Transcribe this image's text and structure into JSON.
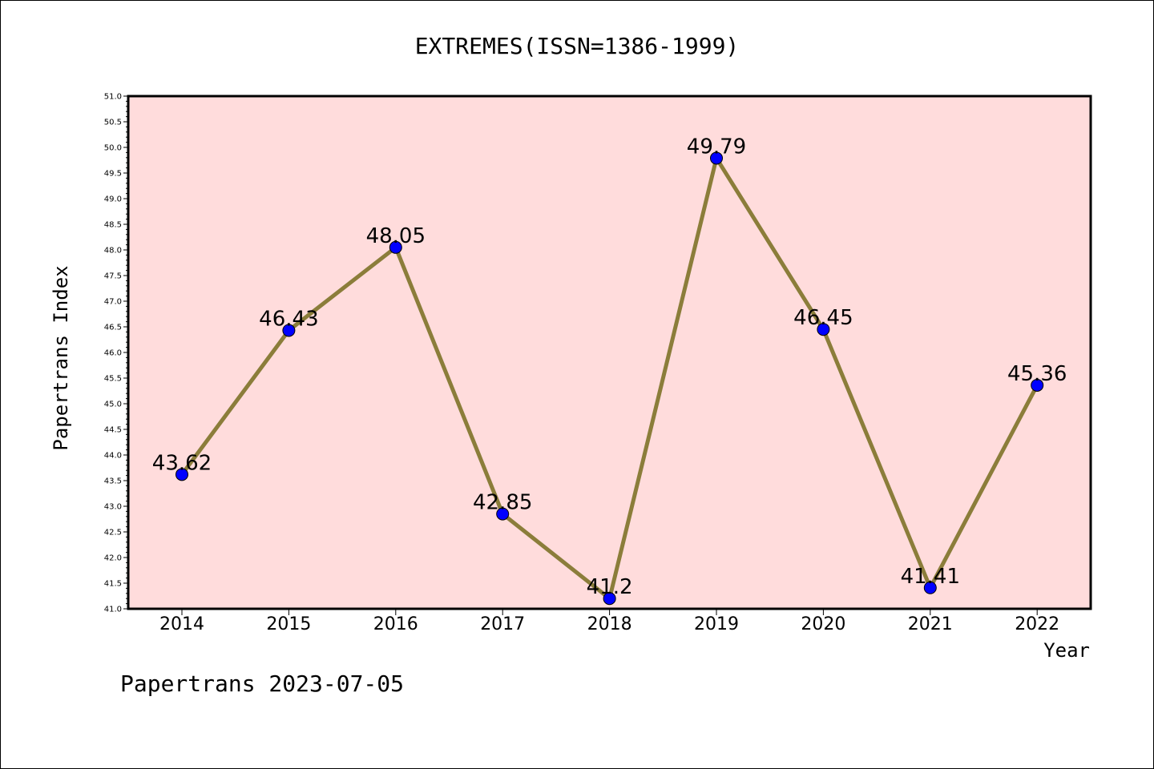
{
  "chart_data": {
    "type": "line",
    "title": "EXTREMES(ISSN=1386-1999)",
    "xlabel": "Year",
    "ylabel": "Papertrans Index",
    "x": [
      "2014",
      "2015",
      "2016",
      "2017",
      "2018",
      "2019",
      "2020",
      "2021",
      "2022"
    ],
    "series": [
      {
        "values": [
          43.62,
          46.43,
          48.05,
          42.85,
          41.2,
          49.79,
          46.45,
          41.41,
          45.36
        ],
        "labels": [
          "43.62",
          "46.43",
          "48.05",
          "42.85",
          "41.2",
          "49.79",
          "46.45",
          "41.41",
          "45.36"
        ],
        "line_color": "#8b7d3a",
        "marker_color": "#0000ff"
      }
    ],
    "ylim": [
      41.0,
      51.0
    ],
    "yticks": [
      "41.0",
      "41.5",
      "42.0",
      "42.5",
      "43.0",
      "43.5",
      "44.0",
      "44.5",
      "45.0",
      "45.5",
      "46.0",
      "46.5",
      "47.0",
      "47.5",
      "48.0",
      "48.5",
      "49.0",
      "49.5",
      "50.0",
      "50.5",
      "51.0"
    ],
    "plot_background": "#ffdcdc",
    "grid": false,
    "legend": "none"
  },
  "footer": "Papertrans 2023-07-05"
}
